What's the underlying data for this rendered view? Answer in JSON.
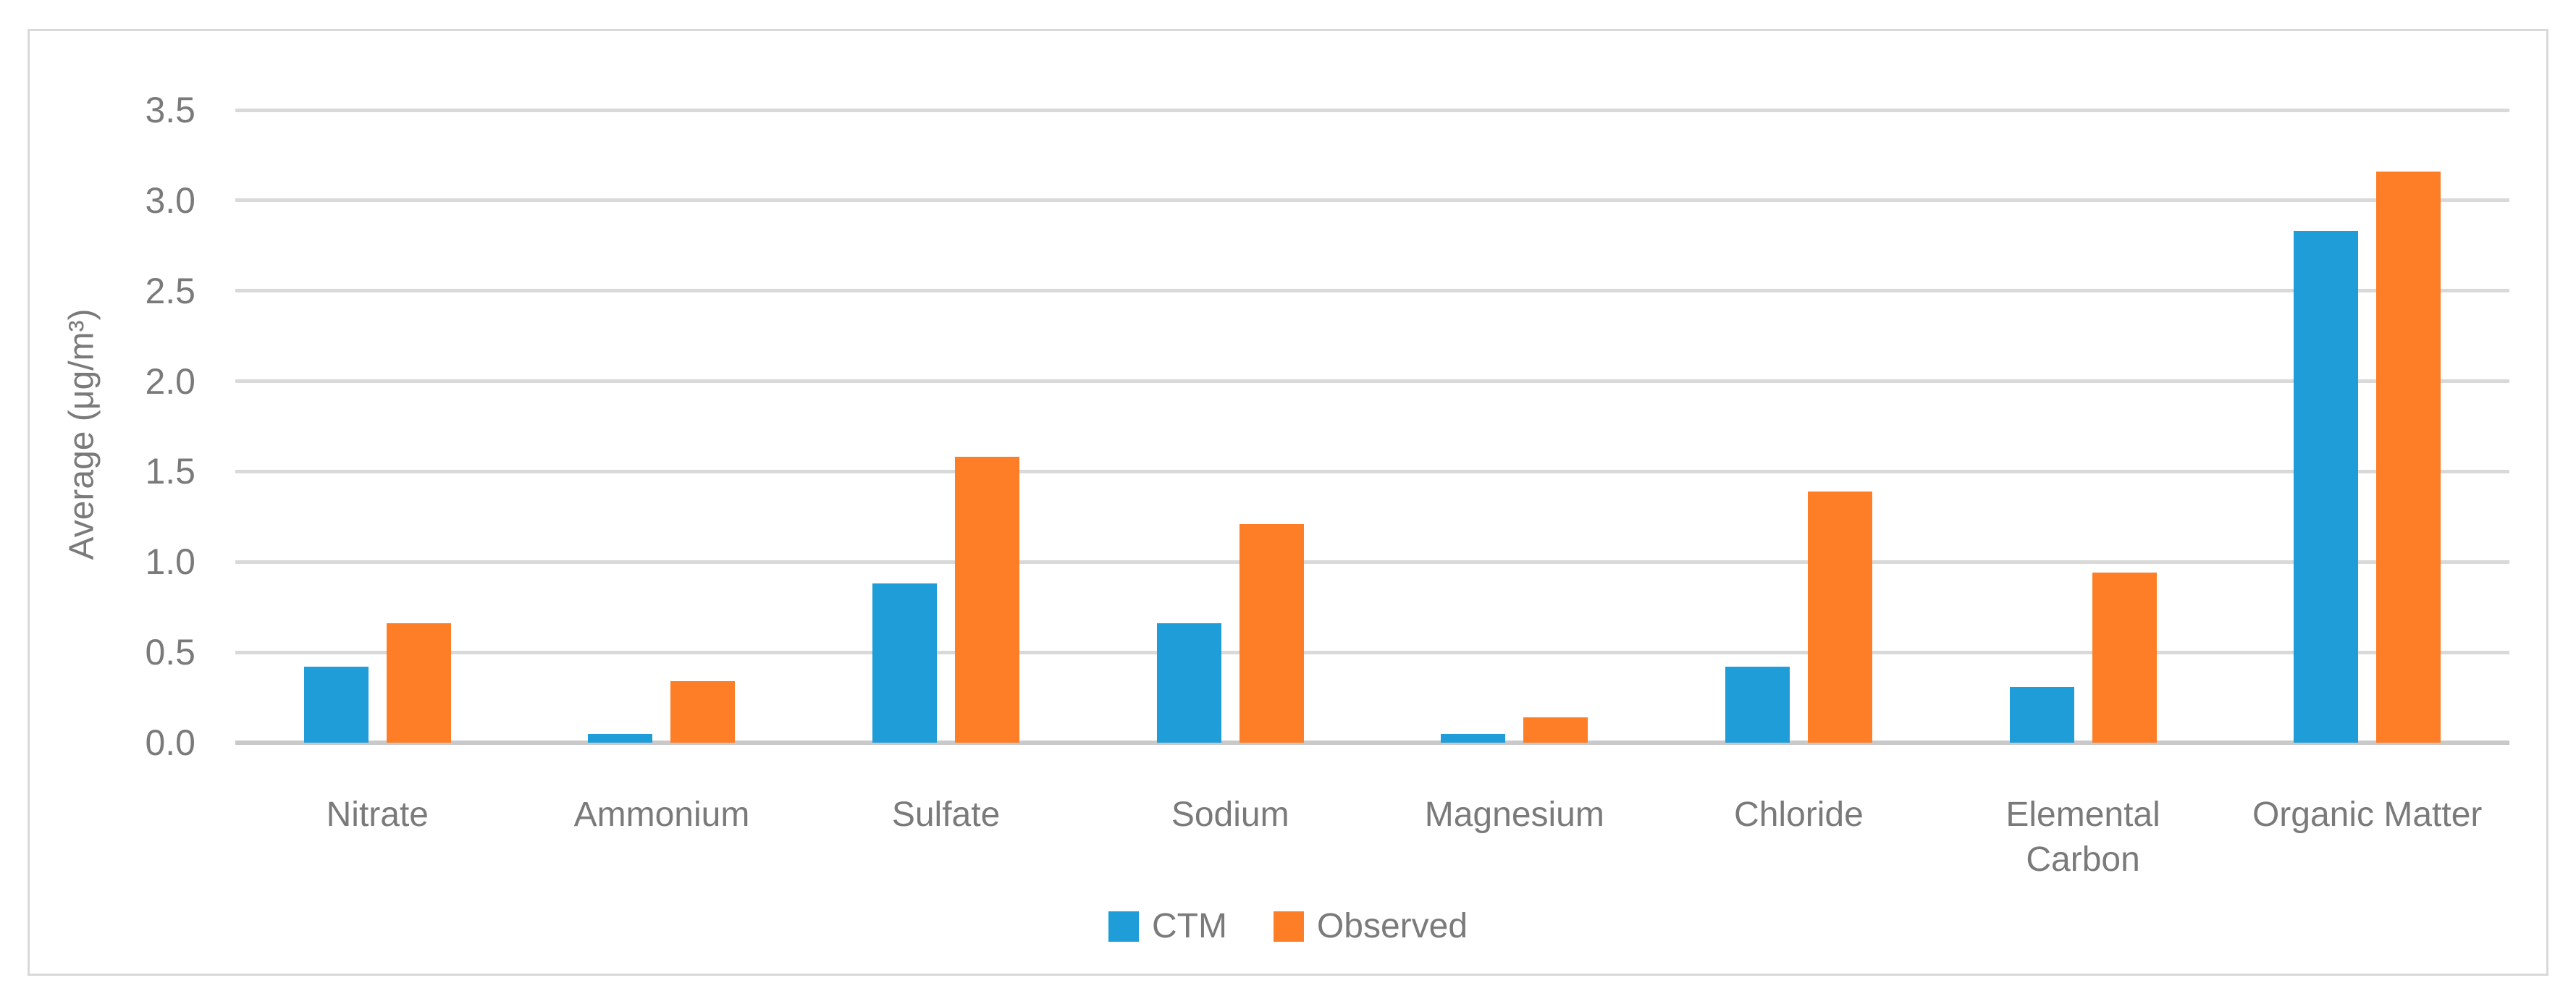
{
  "chart_data": {
    "type": "bar",
    "title": "",
    "categories": [
      "Nitrate",
      "Ammonium",
      "Sulfate",
      "Sodium",
      "Magnesium",
      "Chloride",
      "Elemental Carbon",
      "Organic Matter"
    ],
    "category_label_lines": [
      [
        "Nitrate"
      ],
      [
        "Ammonium"
      ],
      [
        "Sulfate"
      ],
      [
        "Sodium"
      ],
      [
        "Magnesium"
      ],
      [
        "Chloride"
      ],
      [
        "Elemental",
        "Carbon"
      ],
      [
        "Organic Matter"
      ]
    ],
    "series": [
      {
        "name": "CTM",
        "color": "#1f9dd9",
        "values": [
          0.42,
          0.05,
          0.88,
          0.66,
          0.05,
          0.42,
          0.31,
          2.83
        ]
      },
      {
        "name": "Observed",
        "color": "#fd7e27",
        "values": [
          0.66,
          0.34,
          1.58,
          1.21,
          0.14,
          1.39,
          0.94,
          3.16
        ]
      }
    ],
    "xlabel": "",
    "ylabel": "Average (μg/m³)",
    "ylim": [
      0,
      3.5
    ],
    "ytick_step": 0.5,
    "yticks": [
      "0.0",
      "0.5",
      "1.0",
      "1.5",
      "2.0",
      "2.5",
      "3.0",
      "3.5"
    ],
    "grid": "horizontal",
    "legend_position": "bottom"
  },
  "colors": {
    "background": "#ffffff",
    "frame_border": "#d9d9d9",
    "gridline": "#d9d9d9",
    "axis_line": "#c9c9c9",
    "text": "#7a7a7a",
    "series_ctm": "#1f9dd9",
    "series_observed": "#fd7e27"
  }
}
